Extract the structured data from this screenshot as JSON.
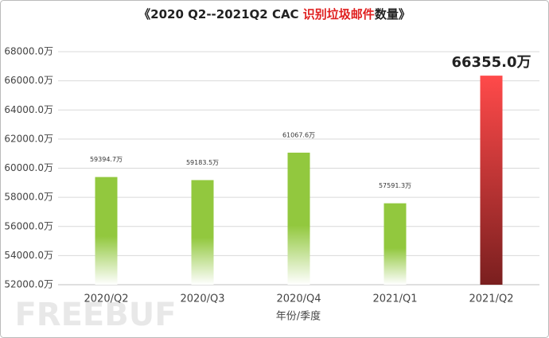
{
  "chart_data": {
    "type": "bar",
    "title": [
      "《2020 Q2--2021Q2 CAC ",
      "识别垃圾邮件",
      "数量》"
    ],
    "title_colors": [
      "#222222",
      "#e02020",
      "#222222"
    ],
    "x_label": "年份/季度",
    "categories": [
      "2020/Q2",
      "2020/Q3",
      "2020/Q4",
      "2021/Q1",
      "2021/Q2"
    ],
    "values": [
      59394.7,
      59183.5,
      61067.6,
      57591.3,
      66355.0
    ],
    "value_labels": [
      "59394.7万",
      "59183.5万",
      "61067.6万",
      "57591.3万",
      "66355.0万"
    ],
    "colors": [
      [
        "#92c83e",
        "#ffffff"
      ],
      [
        "#92c83e",
        "#ffffff"
      ],
      [
        "#92c83e",
        "#ffffff"
      ],
      [
        "#92c83e",
        "#ffffff"
      ],
      [
        "#ff4a4a",
        "#7a1f1f"
      ]
    ],
    "ylim": [
      52000,
      68000
    ],
    "yticks": [
      {
        "value": 52000,
        "label": "52000.0万"
      },
      {
        "value": 54000,
        "label": "54000.0万"
      },
      {
        "value": 56000,
        "label": "56000.0万"
      },
      {
        "value": 58000,
        "label": "58000.0万"
      },
      {
        "value": 60000,
        "label": "60000.0万"
      },
      {
        "value": 62000,
        "label": "62000.0万"
      },
      {
        "value": 64000,
        "label": "64000.0万"
      },
      {
        "value": 66000,
        "label": "66000.0万"
      },
      {
        "value": 68000,
        "label": "68000.0万"
      }
    ],
    "grid": true,
    "watermark": "FREEBUF"
  }
}
